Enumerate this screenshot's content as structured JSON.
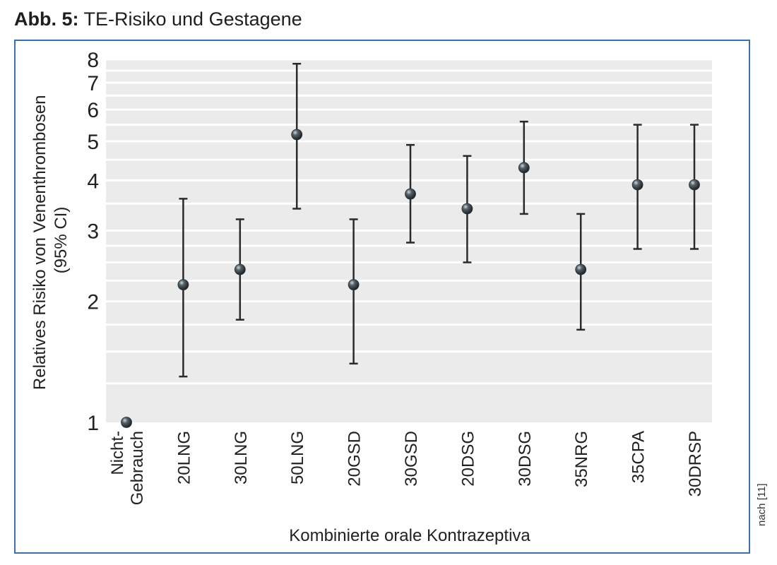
{
  "header": {
    "label": "Abb. 5:",
    "title": "TE-Risiko und Gestagene"
  },
  "source_note": "nach [11]",
  "chart_data": {
    "type": "scatter",
    "title": "TE-Risiko und Gestagene",
    "xlabel": "Kombinierte orale Kontrazeptiva",
    "ylabel_line1": "Relatives Risiko von Venenthrombosen",
    "ylabel_line2": "(95% CI)",
    "yscale": "log",
    "ylim": [
      1,
      8
    ],
    "yticks": [
      1,
      2,
      3,
      4,
      5,
      6,
      7,
      8
    ],
    "grid": true,
    "categories": [
      [
        "Nicht-",
        "Gebrauch"
      ],
      [
        "20LNG"
      ],
      [
        "30LNG"
      ],
      [
        "50LNG"
      ],
      [
        "20GSD"
      ],
      [
        "30GSD"
      ],
      [
        "20DSG"
      ],
      [
        "30DSG"
      ],
      [
        "35NRG"
      ],
      [
        "35CPA"
      ],
      [
        "30DRSP"
      ]
    ],
    "values": [
      1.0,
      2.2,
      2.4,
      5.2,
      2.2,
      3.7,
      3.4,
      4.3,
      2.4,
      3.9,
      3.9
    ],
    "ci_low": [
      null,
      1.3,
      1.8,
      3.4,
      1.4,
      2.8,
      2.5,
      3.3,
      1.7,
      2.7,
      2.7
    ],
    "ci_high": [
      null,
      3.6,
      3.2,
      7.8,
      3.2,
      4.9,
      4.6,
      5.6,
      3.3,
      5.5,
      5.5
    ],
    "colors": {
      "background": "#ebebeb",
      "grid": "#ffffff",
      "marker": "#2a3238",
      "errorbar": "#2a2a2a",
      "frame": "#3d6fa8"
    }
  }
}
